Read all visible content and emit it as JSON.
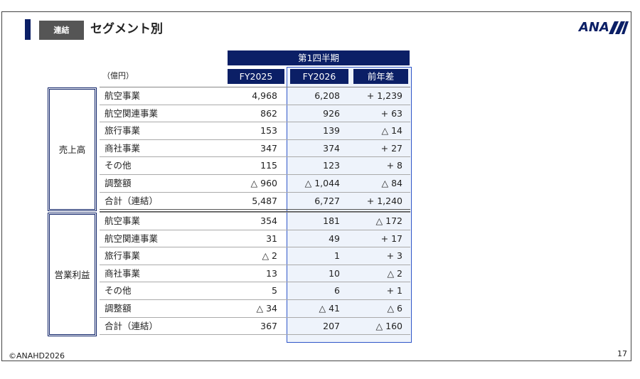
{
  "header": {
    "badge": "連結",
    "title": "セグメント別",
    "logo": "ANA"
  },
  "table": {
    "period": "第1四半期",
    "unit": "（億円）",
    "columns": [
      "FY2025",
      "FY2026",
      "前年差"
    ],
    "groups": [
      {
        "label": "売上高",
        "rows": [
          [
            "航空事業",
            "4,968",
            "6,208",
            "+ 1,239"
          ],
          [
            "航空関連事業",
            "862",
            "926",
            "+ 63"
          ],
          [
            "旅行事業",
            "153",
            "139",
            "△ 14"
          ],
          [
            "商社事業",
            "347",
            "374",
            "+ 27"
          ],
          [
            "その他",
            "115",
            "123",
            "+ 8"
          ],
          [
            "調整額",
            "△ 960",
            "△ 1,044",
            "△ 84"
          ],
          [
            "合計（連結）",
            "5,487",
            "6,727",
            "+ 1,240"
          ]
        ]
      },
      {
        "label": "営業利益",
        "rows": [
          [
            "航空事業",
            "354",
            "181",
            "△ 172"
          ],
          [
            "航空関連事業",
            "31",
            "49",
            "+ 17"
          ],
          [
            "旅行事業",
            "△ 2",
            "1",
            "+ 3"
          ],
          [
            "商社事業",
            "13",
            "10",
            "△ 2"
          ],
          [
            "その他",
            "5",
            "6",
            "+ 1"
          ],
          [
            "調整額",
            "△ 34",
            "△ 41",
            "△ 6"
          ],
          [
            "合計（連結）",
            "367",
            "207",
            "△ 160"
          ]
        ]
      }
    ]
  },
  "footer": {
    "copyright": "©ANAHD2026",
    "page": "17"
  }
}
